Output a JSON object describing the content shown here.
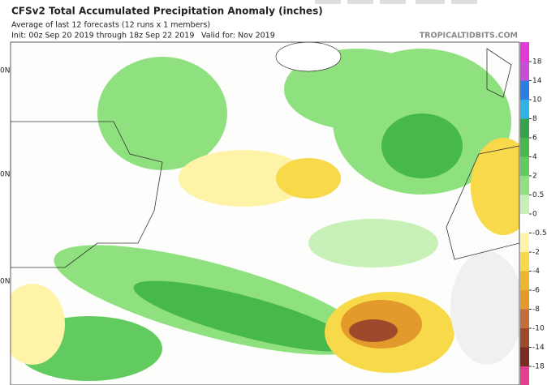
{
  "header": {
    "title": "CFSv2 Total Accumulated Precipitation Anomaly (inches)",
    "subtitle": "Average of last 12 forecasts (12 runs x 1 members)",
    "init": "Init: 00z Sep 20 2019 through 18z Sep 22 2019",
    "valid": "Valid for: Nov 2019",
    "source": "TROPICALTIDBITS.COM"
  },
  "map": {
    "lat_labels": [
      "0N",
      "0N",
      "0N"
    ]
  },
  "colorbar": {
    "labels": [
      18,
      14,
      10,
      8,
      6,
      4,
      2,
      0.5,
      0,
      -0.5,
      -2,
      -4,
      -6,
      -8,
      -10,
      -14,
      -18
    ],
    "colors": [
      "#e23ad8",
      "#c64fd6",
      "#2a7fe0",
      "#2fb3e6",
      "#35a34a",
      "#47b84c",
      "#62cb5f",
      "#8fe07e",
      "#c7f0b6",
      "#ffffff",
      "#fff3a8",
      "#f7d94a",
      "#eeb52f",
      "#e39a2b",
      "#c46d3a",
      "#9c4a2b",
      "#7c2b22",
      "#e43e8f"
    ]
  }
}
